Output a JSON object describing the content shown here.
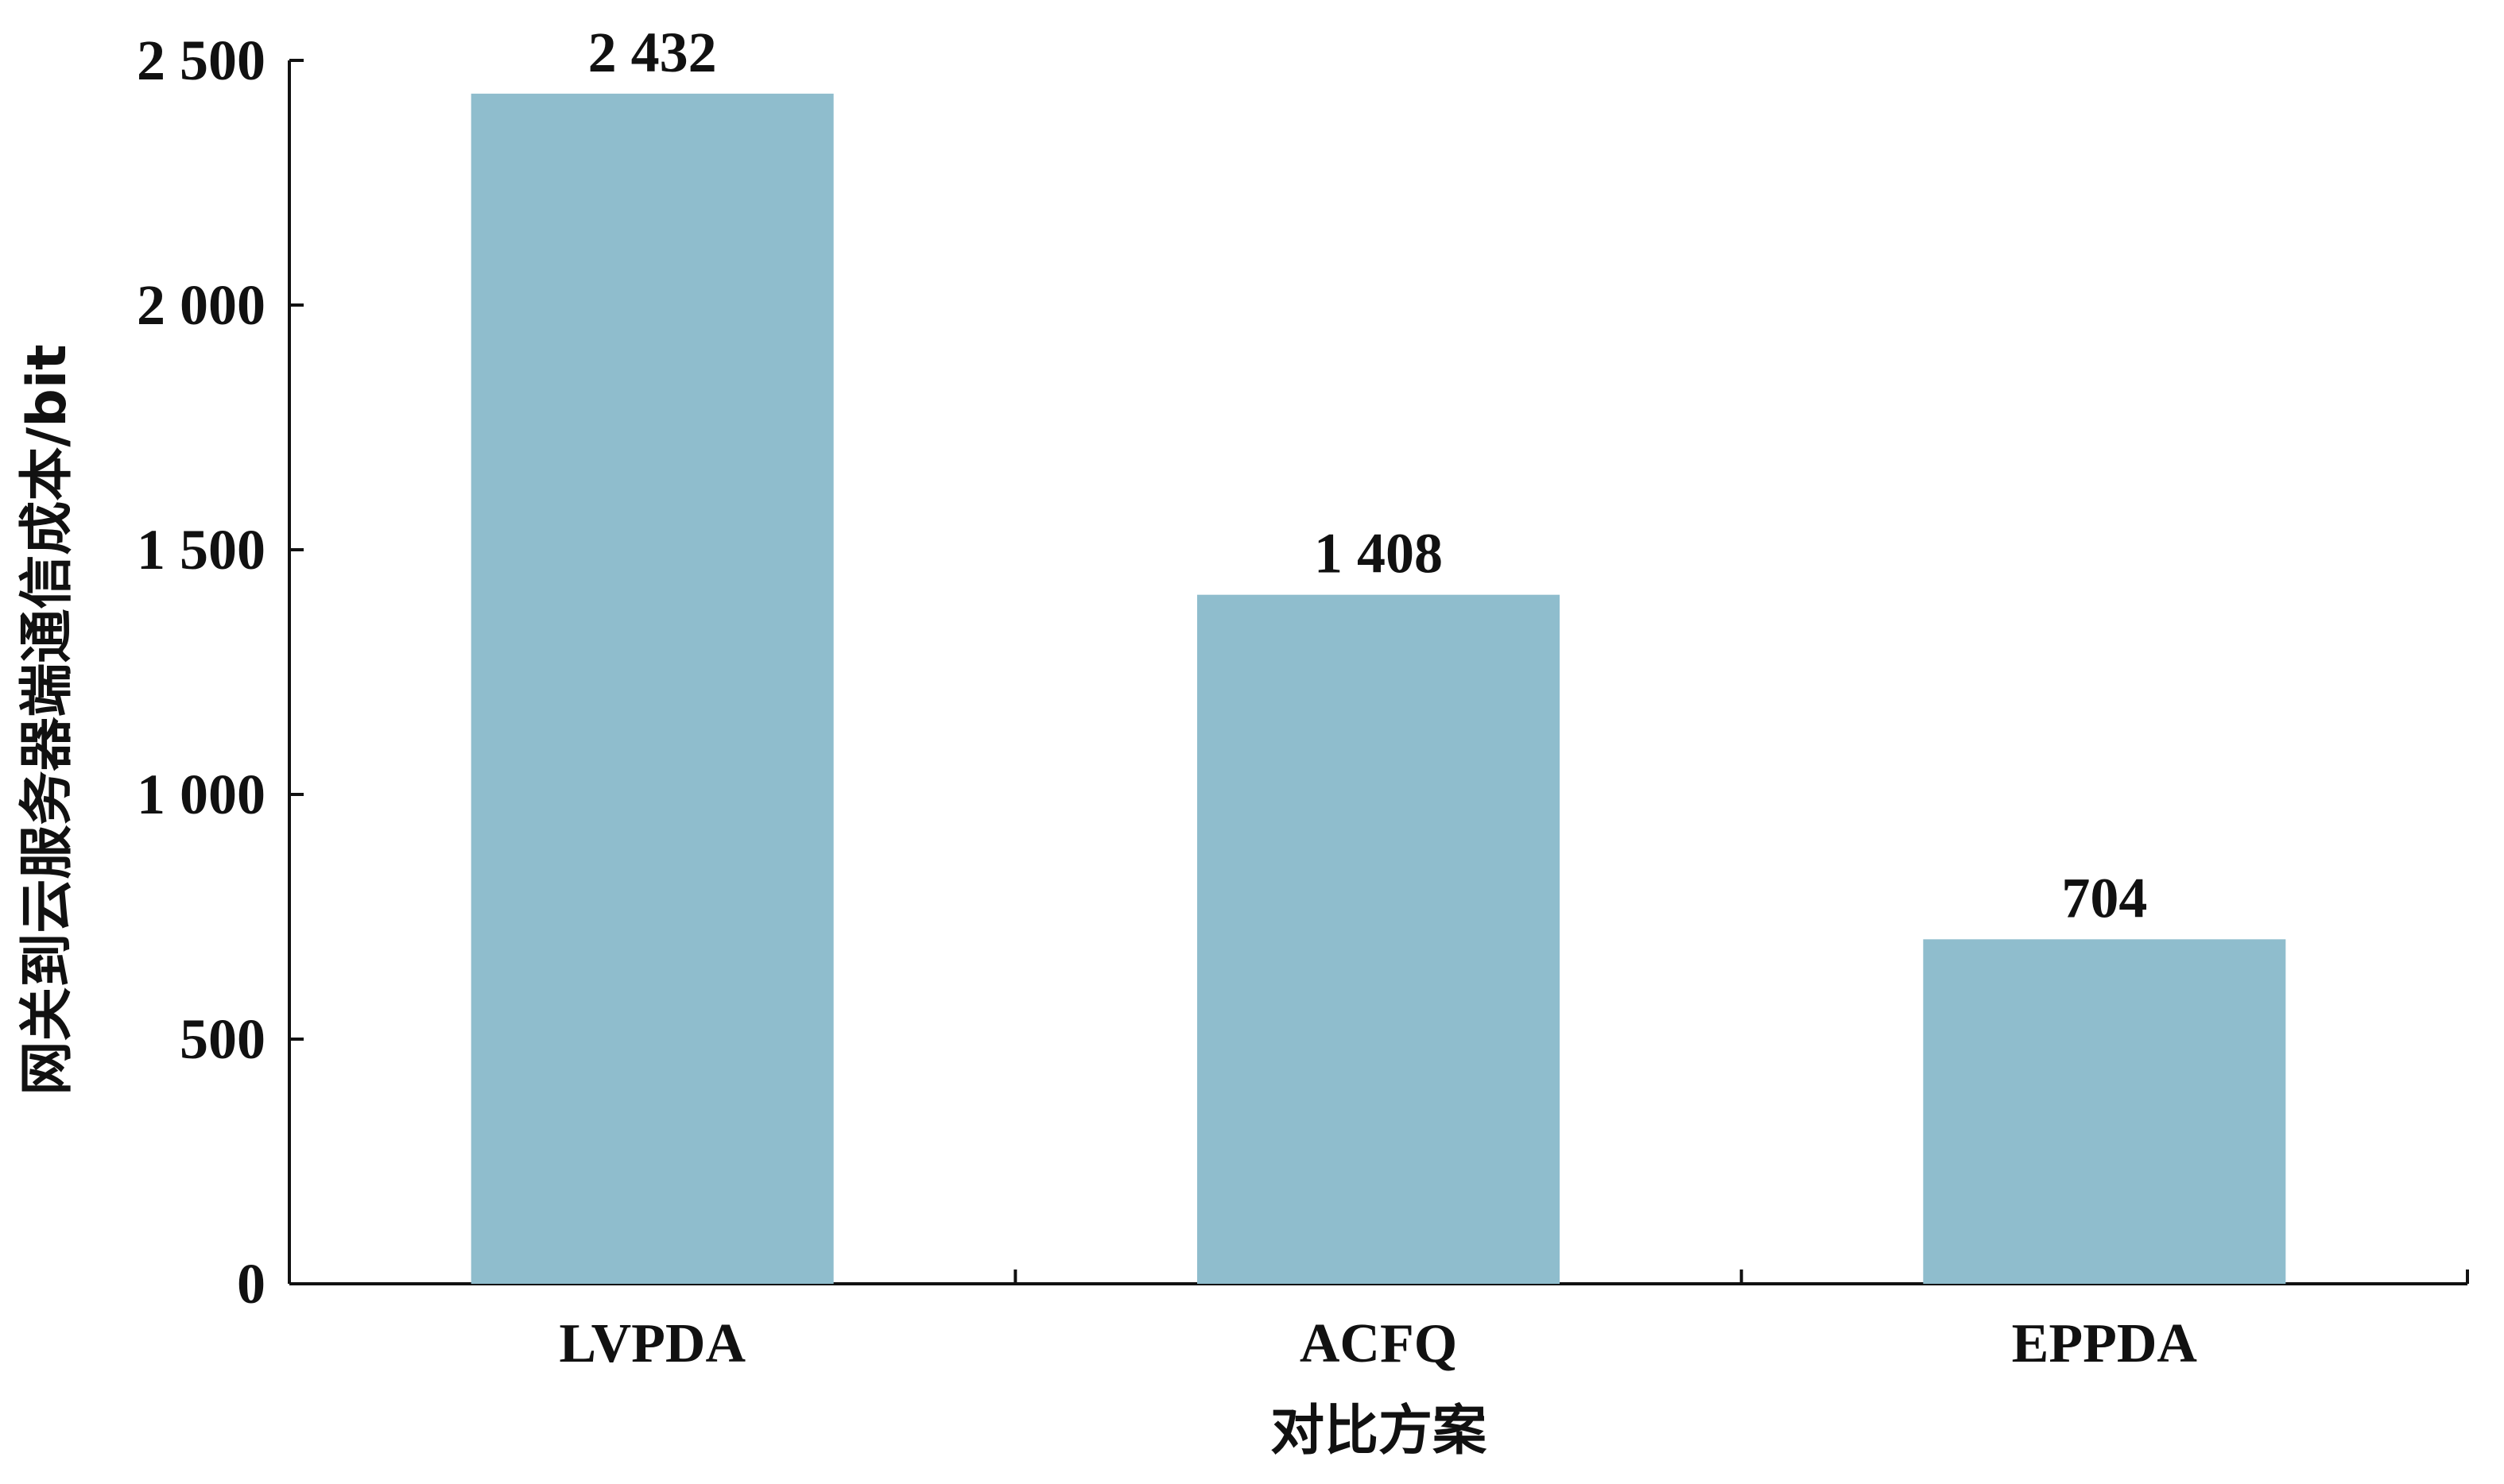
{
  "chart_data": {
    "type": "bar",
    "categories": [
      "LVPDA",
      "ACFQ",
      "EPPDA"
    ],
    "values": [
      2432,
      1408,
      704
    ],
    "data_labels": [
      "2 432",
      "1 408",
      "704"
    ],
    "title": "",
    "xlabel": "对比方案",
    "ylabel": "网关到云服务器端通信成本/bit",
    "ylim": [
      0,
      2500
    ],
    "yticks": [
      0,
      500,
      1000,
      1500,
      2000,
      2500
    ],
    "ytick_labels": [
      "0",
      "500",
      "1 000",
      "1 500",
      "2 000",
      "2 500"
    ],
    "grid": false,
    "legend": "none",
    "bar_color": "#8fbdcd"
  }
}
